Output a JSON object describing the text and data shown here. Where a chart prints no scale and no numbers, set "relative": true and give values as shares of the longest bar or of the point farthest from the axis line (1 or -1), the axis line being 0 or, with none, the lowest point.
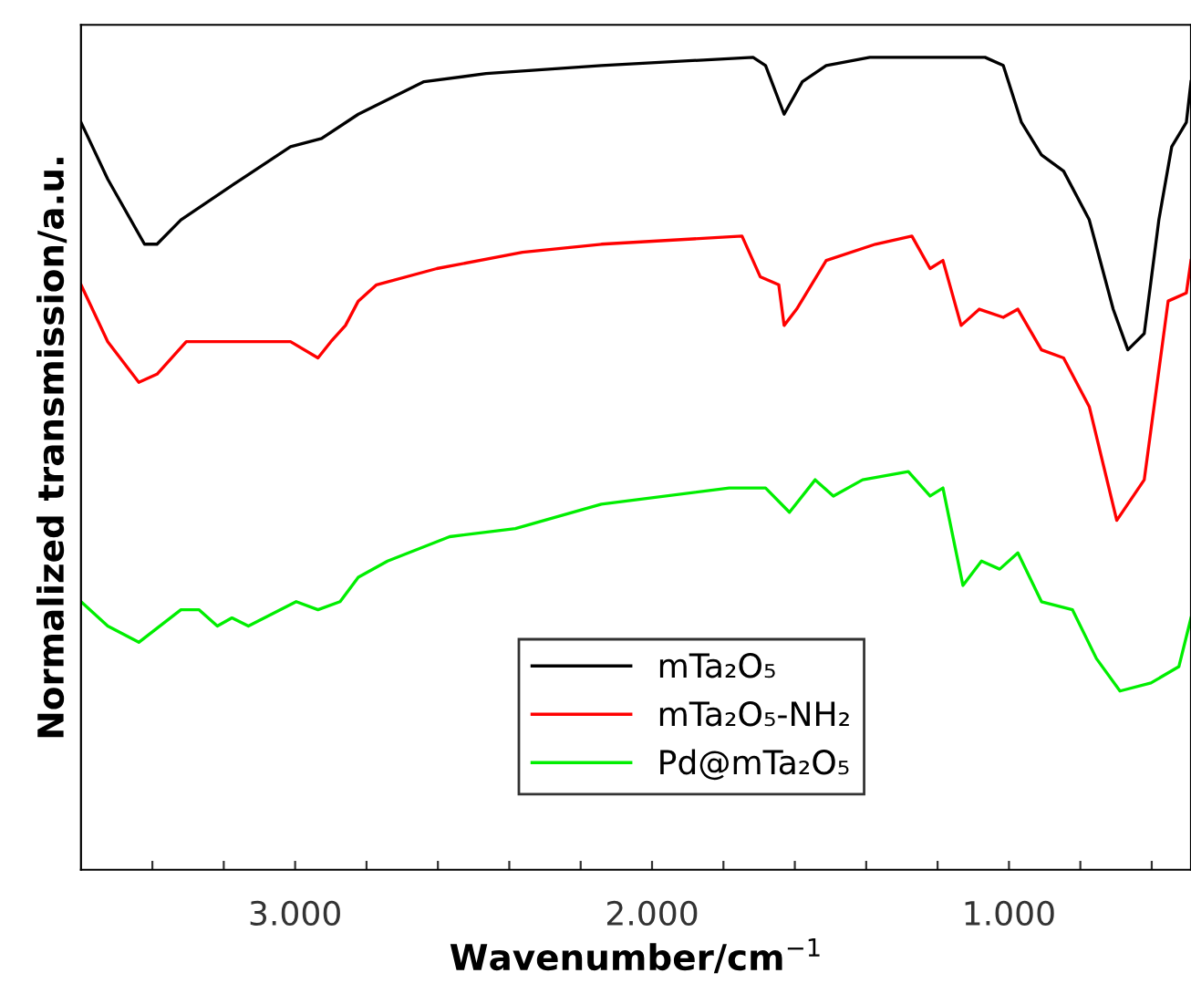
{
  "chart_data": {
    "type": "line",
    "relative": true,
    "xlabel": "Wavenumber/cm$^{−1}$",
    "ylabel": "Normalized transmission/a.u.",
    "xlim": [
      3600,
      490
    ],
    "xticks": [
      {
        "value": 3400,
        "label": null
      },
      {
        "value": 3200,
        "label": null
      },
      {
        "value": 3000,
        "label": "3.000"
      },
      {
        "value": 2800,
        "label": null
      },
      {
        "value": 2600,
        "label": null
      },
      {
        "value": 2400,
        "label": null
      },
      {
        "value": 2200,
        "label": null
      },
      {
        "value": 2000,
        "label": "2.000"
      },
      {
        "value": 1800,
        "label": null
      },
      {
        "value": 1600,
        "label": null
      },
      {
        "value": 1400,
        "label": null
      },
      {
        "value": 1200,
        "label": null
      },
      {
        "value": 1000,
        "label": "1.000"
      },
      {
        "value": 800,
        "label": null
      },
      {
        "value": 600,
        "label": null
      }
    ],
    "grid": false,
    "legend": "bottom",
    "series": [
      {
        "name": "mTa₂O₅",
        "color": "#000000",
        "x": [
          3600,
          3525,
          3422,
          3387,
          3320,
          3151,
          3013,
          2926,
          2823,
          2639,
          2465,
          2142,
          1717,
          1682,
          1630,
          1579,
          1512,
          1390,
          1067,
          1016,
          965,
          909,
          847,
          775,
          708,
          667,
          621,
          580,
          544,
          503,
          490
        ],
        "values": [
          0.92,
          0.85,
          0.77,
          0.77,
          0.8,
          0.85,
          0.89,
          0.9,
          0.93,
          0.97,
          0.98,
          0.99,
          1.0,
          0.99,
          0.93,
          0.97,
          0.99,
          1.0,
          1.0,
          0.99,
          0.92,
          0.88,
          0.86,
          0.8,
          0.69,
          0.64,
          0.66,
          0.8,
          0.89,
          0.92,
          0.97
        ]
      },
      {
        "name": "mTa₂O₅-NH₂",
        "color": "#ff0000",
        "x": [
          3600,
          3525,
          3438,
          3387,
          3305,
          3151,
          3013,
          2936,
          2900,
          2859,
          2823,
          2772,
          2603,
          2363,
          2142,
          1748,
          1697,
          1645,
          1630,
          1595,
          1512,
          1374,
          1272,
          1221,
          1185,
          1134,
          1083,
          1016,
          975,
          909,
          847,
          775,
          698,
          621,
          554,
          503,
          490
        ],
        "values": [
          0.72,
          0.65,
          0.6,
          0.61,
          0.65,
          0.65,
          0.65,
          0.63,
          0.65,
          0.67,
          0.7,
          0.72,
          0.74,
          0.76,
          0.77,
          0.78,
          0.73,
          0.72,
          0.67,
          0.69,
          0.75,
          0.77,
          0.78,
          0.74,
          0.75,
          0.67,
          0.69,
          0.68,
          0.69,
          0.64,
          0.63,
          0.57,
          0.43,
          0.48,
          0.7,
          0.71,
          0.75
        ]
      },
      {
        "name": "Pd@mTa₂O₅",
        "color": "#00ee00",
        "x": [
          3600,
          3525,
          3438,
          3320,
          3269,
          3218,
          3177,
          3131,
          2997,
          2936,
          2874,
          2823,
          2741,
          2567,
          2383,
          2142,
          1784,
          1682,
          1615,
          1543,
          1492,
          1410,
          1282,
          1221,
          1185,
          1129,
          1077,
          1026,
          975,
          909,
          822,
          755,
          689,
          602,
          524,
          490
        ],
        "values": [
          0.33,
          0.3,
          0.28,
          0.32,
          0.32,
          0.3,
          0.31,
          0.3,
          0.33,
          0.32,
          0.33,
          0.36,
          0.38,
          0.41,
          0.42,
          0.45,
          0.47,
          0.47,
          0.44,
          0.48,
          0.46,
          0.48,
          0.49,
          0.46,
          0.47,
          0.35,
          0.38,
          0.37,
          0.39,
          0.33,
          0.32,
          0.26,
          0.22,
          0.23,
          0.25,
          0.31
        ]
      }
    ]
  }
}
